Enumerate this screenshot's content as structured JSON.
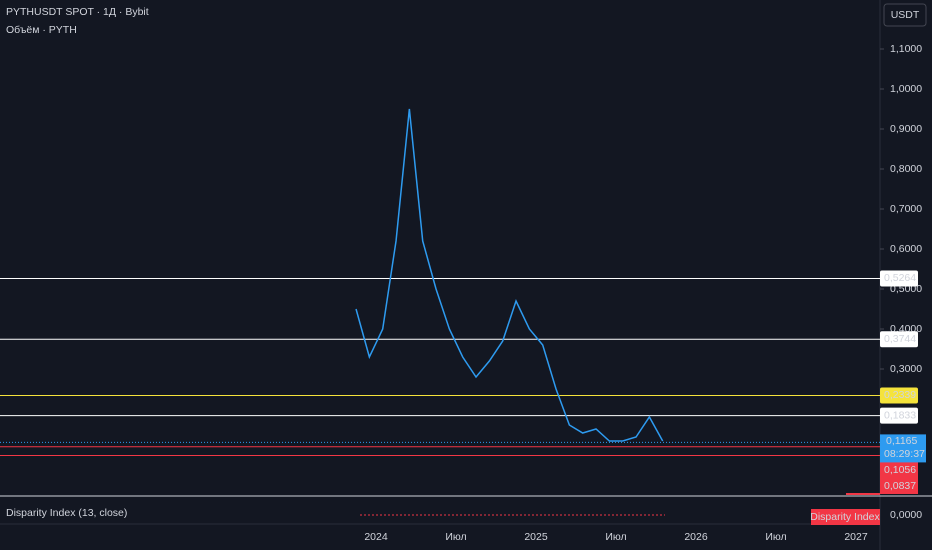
{
  "chart_data": {
    "type": "line",
    "title": "PYTHUSDT SPOT · 1Д · Bybit",
    "subtitle": "Объём · PYTH",
    "currency_button": "USDT",
    "x": [
      "2023-11",
      "2023-12",
      "2024-01",
      "2024-02",
      "2024-03",
      "2024-04",
      "2024-05",
      "2024-06",
      "2024-07",
      "2024-08",
      "2024-09",
      "2024-10",
      "2024-11",
      "2024-12",
      "2025-01",
      "2025-02",
      "2025-03",
      "2025-04",
      "2025-05",
      "2025-06",
      "2025-07",
      "2025-08",
      "2025-09",
      "2025-10"
    ],
    "series": [
      {
        "name": "PYTHUSDT",
        "color": "#2e9bf0",
        "values": [
          0.45,
          0.33,
          0.4,
          0.62,
          0.95,
          0.62,
          0.5,
          0.4,
          0.33,
          0.28,
          0.32,
          0.37,
          0.47,
          0.4,
          0.36,
          0.25,
          0.16,
          0.14,
          0.15,
          0.12,
          0.12,
          0.13,
          0.18,
          0.12
        ]
      }
    ],
    "ylim": [
      -0.0175,
      1.2225
    ],
    "yticks": [
      {
        "value": 1.1,
        "label": "1,1000"
      },
      {
        "value": 1.0,
        "label": "1,0000"
      },
      {
        "value": 0.9,
        "label": "0,9000"
      },
      {
        "value": 0.8,
        "label": "0,8000"
      },
      {
        "value": 0.7,
        "label": "0,7000"
      },
      {
        "value": 0.6,
        "label": "0,6000"
      },
      {
        "value": 0.5,
        "label": "0,5000"
      },
      {
        "value": 0.4,
        "label": "0,4000"
      },
      {
        "value": 0.3,
        "label": "0,3000"
      }
    ],
    "xticks": [
      {
        "value": "2024-01",
        "label": "2024"
      },
      {
        "value": "2024-07",
        "label": "Июл"
      },
      {
        "value": "2025-01",
        "label": "2025"
      },
      {
        "value": "2025-07",
        "label": "Июл"
      },
      {
        "value": "2026-01",
        "label": "2026"
      },
      {
        "value": "2026-07",
        "label": "Июл"
      },
      {
        "value": "2027-01",
        "label": "2027"
      }
    ],
    "levels": [
      {
        "value": 0.5264,
        "label": "0,5264",
        "color": "#ffffff"
      },
      {
        "value": 0.3744,
        "label": "0,3744",
        "color": "#ffffff"
      },
      {
        "value": 0.2339,
        "label": "0,2339",
        "color": "#f5e33b"
      },
      {
        "value": 0.1833,
        "label": "0,1833",
        "color": "#ffffff"
      }
    ],
    "last_price": {
      "value": 0.1165,
      "label": "0,1165",
      "countdown": "08:29:37",
      "color": "#2e9bf0"
    },
    "red_levels": [
      {
        "value": 0.1056,
        "label": "0,1056"
      },
      {
        "value": 0.0837,
        "label": "0,0837"
      }
    ],
    "indicator": {
      "title": "Disparity Index (13, close)",
      "badge": "Disparity Index",
      "value": {
        "value": 0,
        "label": "0,0000"
      }
    }
  }
}
